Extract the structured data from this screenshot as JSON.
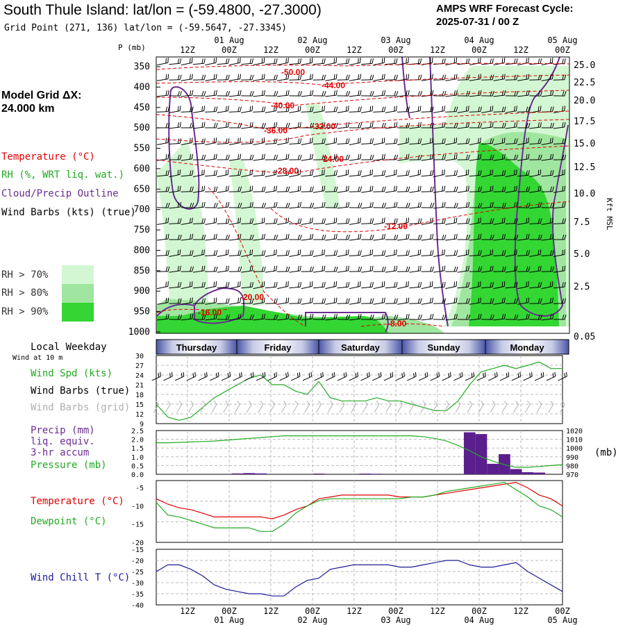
{
  "header": {
    "title": "South Thule Island:  lat/lon = (-59.4800, -27.3000)",
    "subtitle": "Grid Point (271, 136) lat/lon = (-59.5647, -27.3345)",
    "model_name": "AMPS WRF Forecast Cycle:",
    "cycle": "2025-07-31 / 00  Z",
    "grid_label": "Model Grid ΔX:",
    "grid_value": " 24.000 km"
  },
  "legend": {
    "temperature": "Temperature (°C)",
    "rh": "RH (%, WRT liq. wat.)",
    "cloud": "Cloud/Precip Outline",
    "wind": "Wind Barbs (kts) (true)",
    "rh70": "RH > 70%",
    "rh80": "RH > 80%",
    "rh90": "RH > 90%",
    "color_temp": "#e00000",
    "color_rh": "#22aa22",
    "color_cloud": "#6a2c91",
    "rh70_color": "#d2f7d2",
    "rh80_color": "#a0e6a0",
    "rh90_color": "#33d633"
  },
  "time_axis": {
    "hour_labels": [
      "12Z",
      "00Z",
      "12Z",
      "00Z",
      "12Z",
      "00Z",
      "12Z",
      "00Z",
      "12Z",
      "00Z"
    ],
    "date_labels": [
      "01 Aug",
      "02 Aug",
      "03 Aug",
      "04 Aug",
      "05 Aug"
    ],
    "days": [
      "Thursday",
      "Friday",
      "Saturday",
      "Sunday",
      "Monday"
    ],
    "local_weekday": "Local Weekday",
    "wind_at_10m": "Wind at 10 m"
  },
  "cross_section": {
    "p_label": "P (mb)",
    "pressure_levels": [
      350,
      400,
      450,
      500,
      550,
      600,
      650,
      700,
      750,
      800,
      850,
      900,
      950,
      1000
    ],
    "height_label": "Kft MSL",
    "height_ticks": [
      "25.0",
      "22.5",
      "20.0",
      "17.5",
      "15.0",
      "12.5",
      "10.0",
      "7.5",
      "5.0",
      "2.5",
      "0.05"
    ],
    "temp_contour_labels": [
      "-50.00",
      "-44.00",
      "-40.00",
      "-36.00",
      "-32.00",
      "-28.00",
      "-24.00",
      "-20.00",
      "-16.00",
      "-12.00",
      "-8.00"
    ]
  },
  "panels": {
    "wind": {
      "label_spd": "Wind Spd (kts)",
      "label_barbs_true": "Wind Barbs (true)",
      "label_barbs_grid": "Wind Barbs (grid)",
      "yticks": [
        "30",
        "27",
        "24",
        "21",
        "18",
        "15",
        "12",
        "9"
      ],
      "ylim": [
        9,
        30
      ],
      "speed": [
        15,
        11,
        10,
        11,
        14,
        17,
        19,
        21,
        23,
        24,
        21,
        21,
        19,
        18,
        22,
        17,
        16,
        16,
        16,
        17,
        16,
        16,
        15,
        14,
        13,
        13,
        16,
        21,
        25,
        26,
        27,
        26,
        27,
        28,
        26,
        26
      ]
    },
    "precip": {
      "label1": "Precip (mm)",
      "label2": "liq. equiv.",
      "label3": "3-hr accum",
      "label4": "Pressure (mb)",
      "unit": "(mb)",
      "yticks": [
        "2.5",
        "2.0",
        "1.5",
        "1.0",
        "0.5",
        "0.0"
      ],
      "ylim": [
        0,
        2.5
      ],
      "rticks": [
        "1020",
        "1010",
        "1000",
        "990",
        "980",
        "970"
      ],
      "rlim": [
        970,
        1020
      ],
      "bars": [
        {
          "i": 7,
          "v": 0.05
        },
        {
          "i": 8,
          "v": 0.07
        },
        {
          "i": 9,
          "v": 0.05
        },
        {
          "i": 14,
          "v": 0.04
        },
        {
          "i": 18,
          "v": 0.04
        },
        {
          "i": 19,
          "v": 0.03
        },
        {
          "i": 27,
          "v": 2.4
        },
        {
          "i": 28,
          "v": 2.3
        },
        {
          "i": 29,
          "v": 0.6
        },
        {
          "i": 30,
          "v": 1.15
        },
        {
          "i": 31,
          "v": 0.3
        },
        {
          "i": 32,
          "v": 0.12
        },
        {
          "i": 33,
          "v": 0.1
        }
      ],
      "pressure": [
        1006,
        1006,
        1006.5,
        1007,
        1007.5,
        1008,
        1009,
        1010,
        1011,
        1012,
        1013,
        1014,
        1014,
        1014,
        1014,
        1014,
        1014,
        1014,
        1014,
        1014,
        1014,
        1014,
        1014,
        1013,
        1011,
        1008,
        1003,
        997,
        990,
        985,
        981,
        978,
        978,
        979,
        980,
        981
      ]
    },
    "temp": {
      "label_t": "Temperature (°C)",
      "label_td": "Dewpoint (°C)",
      "yticks": [
        "-5",
        "-10",
        "-15",
        "-20"
      ],
      "ylim": [
        -20,
        -3
      ],
      "temperature": [
        -8,
        -9.5,
        -10.5,
        -11,
        -12,
        -13,
        -13,
        -13,
        -13,
        -13,
        -13.5,
        -12.5,
        -11,
        -10,
        -8,
        -7.5,
        -7,
        -7,
        -7,
        -7,
        -7,
        -7.5,
        -7.5,
        -7.5,
        -7,
        -6.5,
        -6,
        -5.5,
        -5,
        -4.5,
        -4,
        -3.5,
        -5,
        -7,
        -8,
        -10
      ],
      "dewpoint": [
        -9,
        -12.5,
        -13,
        -14,
        -15,
        -16,
        -16,
        -16,
        -16,
        -17,
        -17,
        -15,
        -12,
        -10,
        -8.5,
        -8,
        -8,
        -8,
        -8,
        -8,
        -8,
        -8,
        -7.5,
        -7.5,
        -7,
        -6,
        -5.5,
        -5,
        -4.5,
        -4,
        -3.5,
        -5.5,
        -7.5,
        -10,
        -11,
        -13
      ]
    },
    "chill": {
      "label": "Wind Chill T (°C)",
      "yticks": [
        "-15",
        "-20",
        "-25",
        "-30",
        "-35",
        "-40"
      ],
      "ylim": [
        -40,
        -15
      ],
      "values": [
        -25,
        -22,
        -22,
        -24,
        -27,
        -31,
        -33,
        -34,
        -35,
        -35,
        -36,
        -36,
        -32,
        -29,
        -28,
        -24,
        -23,
        -22,
        -22,
        -22,
        -22,
        -23,
        -23,
        -22,
        -21,
        -20,
        -20,
        -22,
        -23,
        -23,
        -22,
        -21,
        -25,
        -28,
        -31,
        -34
      ]
    }
  }
}
